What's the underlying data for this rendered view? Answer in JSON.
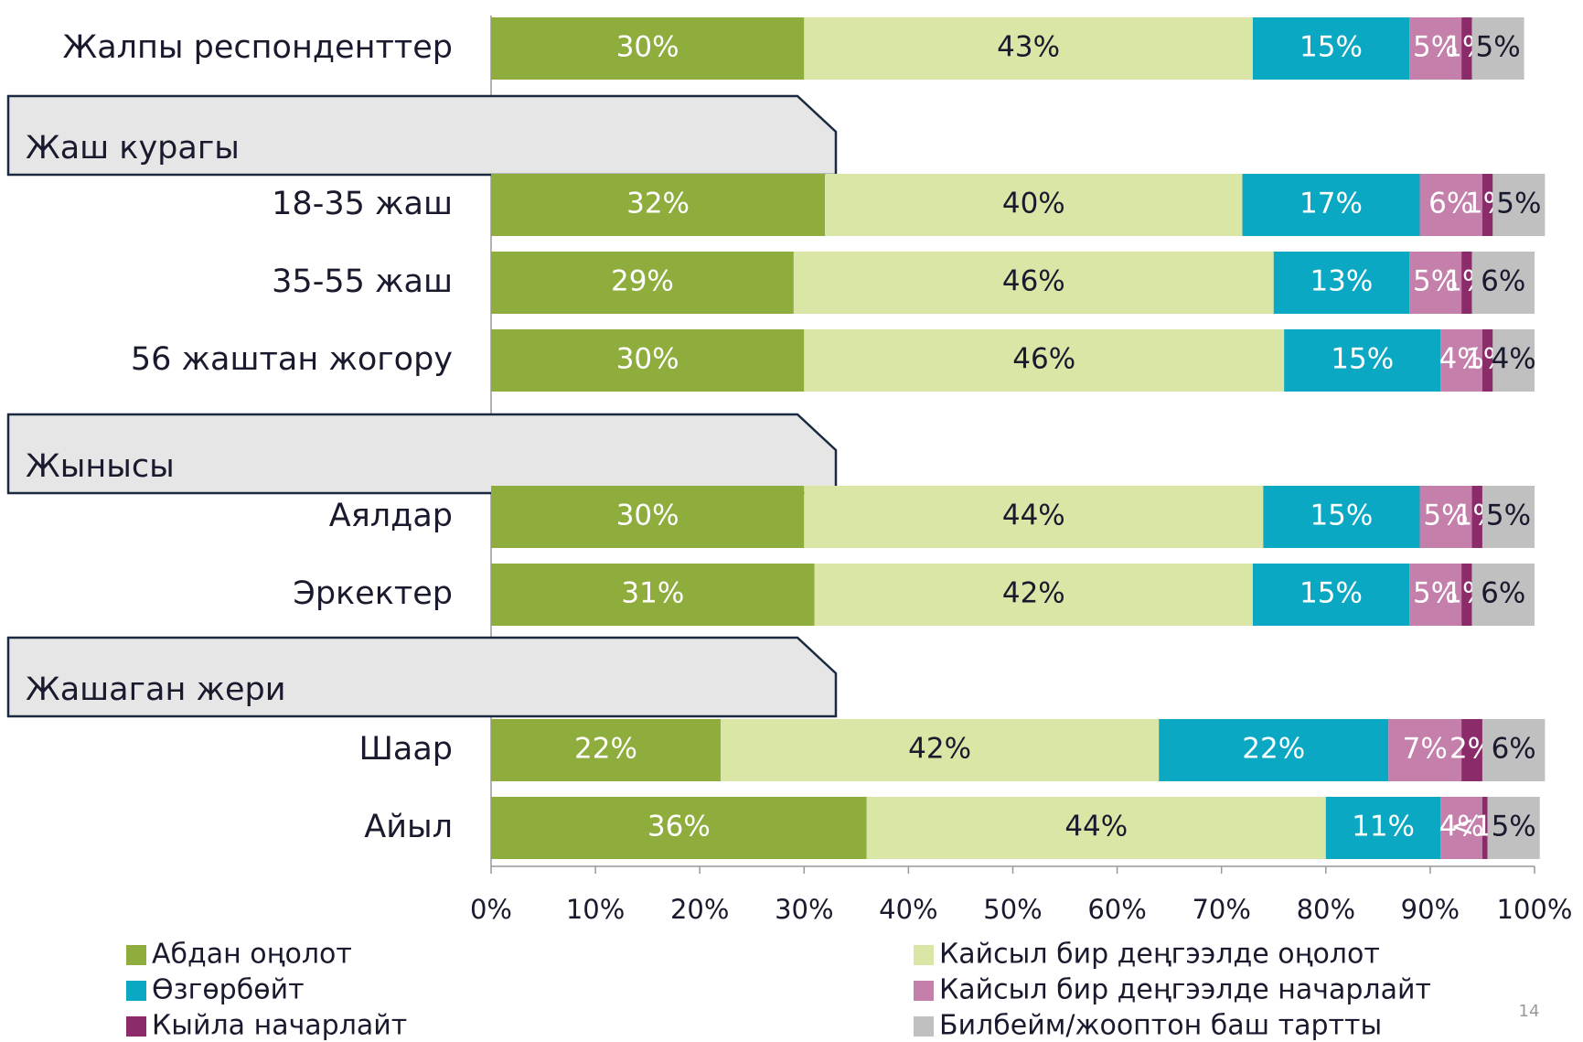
{
  "chart_data": {
    "type": "stacked-barh",
    "categories": [
      "Жалпы респонденттер",
      "Жаш курагы",
      "18-35 жаш",
      "35-55 жаш",
      "56 жаштан жогору",
      "Жынысы",
      "Аялдар",
      "Эркектер",
      "Жашаган жери",
      "Шаар",
      "Айыл"
    ],
    "series": [
      {
        "name": "Абдан оңолот",
        "color": "#8fad3c",
        "values": [
          30,
          null,
          32,
          29,
          30,
          null,
          30,
          31,
          null,
          22,
          36
        ],
        "value_labels": [
          "30%",
          null,
          "32%",
          "29%",
          "30%",
          null,
          "30%",
          "31%",
          null,
          "22%",
          "36%"
        ]
      },
      {
        "name": "Кайсыл бир деңгээлде оңолот",
        "color": "#d9e6a6",
        "values": [
          43,
          null,
          40,
          46,
          46,
          null,
          44,
          42,
          null,
          42,
          44
        ],
        "value_labels": [
          "43%",
          null,
          "40%",
          "46%",
          "46%",
          null,
          "44%",
          "42%",
          null,
          "42%",
          "44%"
        ]
      },
      {
        "name": "Өзгөрбөйт",
        "color": "#0aa8c2",
        "values": [
          15,
          null,
          17,
          13,
          15,
          null,
          15,
          15,
          null,
          22,
          11
        ],
        "value_labels": [
          "15%",
          null,
          "17%",
          "13%",
          "15%",
          null,
          "15%",
          "15%",
          null,
          "22%",
          "11%"
        ]
      },
      {
        "name": "Кайсыл бир деңгээлде начарлайт",
        "color": "#c47fab",
        "values": [
          5,
          null,
          6,
          5,
          4,
          null,
          5,
          5,
          null,
          7,
          4
        ],
        "value_labels": [
          "5%",
          null,
          "6%",
          "5%",
          "4%",
          null,
          "5%",
          "5%",
          null,
          "7%",
          "4%"
        ]
      },
      {
        "name": "Кыйла начарлайт",
        "color": "#8b2b6a",
        "values": [
          1,
          null,
          1,
          1,
          1,
          null,
          1,
          1,
          null,
          2,
          0.5
        ],
        "value_labels": [
          "1%",
          null,
          "1%",
          "1%",
          "1%",
          null,
          "1%",
          "1%",
          null,
          "2%",
          "<1%"
        ]
      },
      {
        "name": "Билбейм/жооптон баш тартты",
        "color": "#c0c0c0",
        "values": [
          5,
          null,
          5,
          6,
          4,
          null,
          5,
          6,
          null,
          6,
          5
        ],
        "value_labels": [
          "5%",
          null,
          "5%",
          "6%",
          "4%",
          null,
          "5%",
          "6%",
          null,
          "6%",
          "5%"
        ]
      }
    ],
    "xlim": [
      0,
      100
    ],
    "xticks": [
      {
        "value": 0,
        "label": "0%"
      },
      {
        "value": 10,
        "label": "10%"
      },
      {
        "value": 20,
        "label": "20%"
      },
      {
        "value": 30,
        "label": "30%"
      },
      {
        "value": 40,
        "label": "40%"
      },
      {
        "value": 50,
        "label": "50%"
      },
      {
        "value": 60,
        "label": "60%"
      },
      {
        "value": 70,
        "label": "70%"
      },
      {
        "value": 80,
        "label": "80%"
      },
      {
        "value": 90,
        "label": "90%"
      },
      {
        "value": 100,
        "label": "100%"
      }
    ],
    "legend": "bottom",
    "page_number": "14"
  }
}
